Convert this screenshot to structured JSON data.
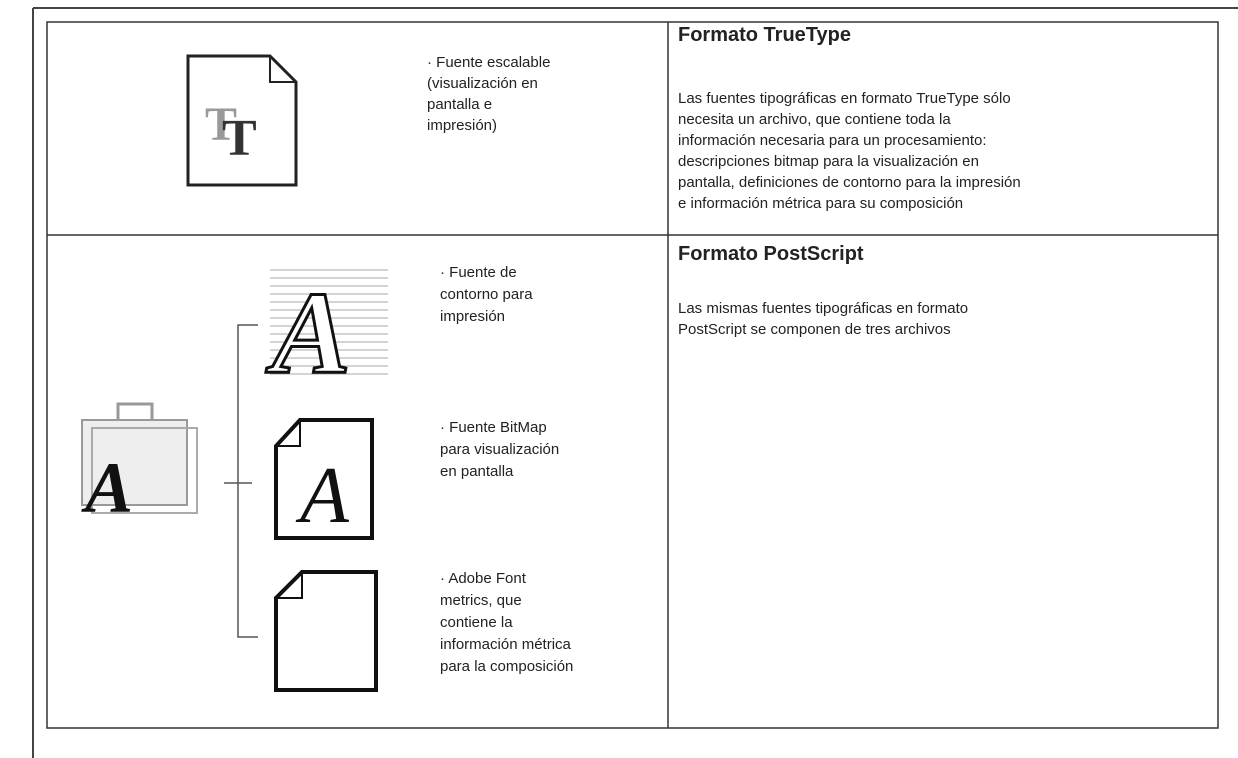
{
  "truetype": {
    "title": "Formato TrueType",
    "bullet": [
      "· Fuente escalable",
      "(visualización en",
      "pantalla e",
      "impresión)"
    ],
    "description": [
      "Las fuentes tipográficas en formato TrueType sólo",
      "necesita un archivo, que contiene toda la",
      "información necesaria para un procesamiento:",
      "descripciones bitmap para la visualización en",
      "pantalla, definiciones de contorno para la impresión",
      "e información métrica para su composición"
    ]
  },
  "postscript": {
    "title": "Formato PostScript",
    "description": [
      "Las mismas fuentes tipográficas en formato",
      "PostScript se componen de tres archivos"
    ],
    "files": [
      [
        "· Fuente de",
        "contorno para",
        "impresión"
      ],
      [
        "· Fuente BitMap",
        "para visualización",
        "en pantalla"
      ],
      [
        "· Adobe Font",
        "metrics, que",
        "contiene la",
        "información métrica",
        "para la composición"
      ]
    ]
  }
}
